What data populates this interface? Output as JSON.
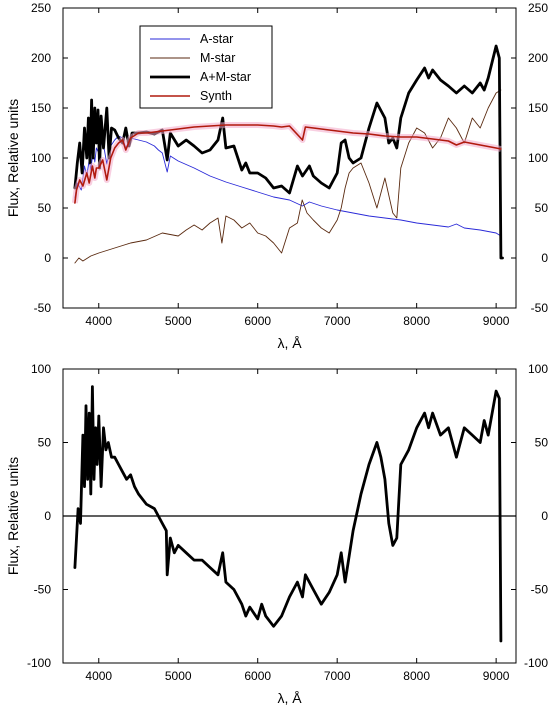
{
  "chart_data": [
    {
      "type": "line",
      "xlabel": "λ, Å",
      "ylabel": "Flux, Relative units",
      "xlim": [
        3550,
        9250
      ],
      "ylim": [
        -50,
        250
      ],
      "xticks": [
        4000,
        5000,
        6000,
        7000,
        8000,
        9000
      ],
      "yticks": [
        -50,
        0,
        50,
        100,
        150,
        200,
        250
      ],
      "right_axis_ticks": true,
      "grid": false,
      "legend": "top-left",
      "series": [
        {
          "name": "A-star",
          "color": "#2a2ad8",
          "width": 0.9,
          "x": [
            3700,
            3730,
            3780,
            3820,
            3850,
            3880,
            3900,
            3930,
            3950,
            3970,
            4000,
            4050,
            4101,
            4150,
            4200,
            4250,
            4300,
            4340,
            4400,
            4500,
            4600,
            4700,
            4750,
            4800,
            4861,
            4900,
            5000,
            5200,
            5400,
            5600,
            5800,
            6000,
            6200,
            6400,
            6563,
            6650,
            6800,
            7000,
            7200,
            7400,
            7600,
            7800,
            8000,
            8200,
            8400,
            8500,
            8600,
            8800,
            9000,
            9060
          ],
          "y": [
            60,
            75,
            68,
            92,
            82,
            98,
            88,
            108,
            96,
            110,
            105,
            118,
            94,
            112,
            118,
            122,
            120,
            110,
            120,
            118,
            116,
            112,
            108,
            105,
            86,
            102,
            97,
            90,
            82,
            76,
            71,
            66,
            61,
            58,
            52,
            56,
            52,
            48,
            45,
            42,
            40,
            38,
            35,
            33,
            31,
            34,
            30,
            28,
            25,
            22
          ]
        },
        {
          "name": "M-star",
          "color": "#5a2a10",
          "width": 0.9,
          "x": [
            3700,
            3750,
            3800,
            3900,
            4000,
            4200,
            4400,
            4600,
            4800,
            5000,
            5100,
            5200,
            5300,
            5400,
            5500,
            5550,
            5600,
            5700,
            5800,
            5900,
            6000,
            6100,
            6200,
            6300,
            6400,
            6500,
            6560,
            6620,
            6700,
            6800,
            6900,
            7000,
            7050,
            7100,
            7150,
            7200,
            7300,
            7400,
            7500,
            7600,
            7700,
            7750,
            7800,
            7900,
            8000,
            8100,
            8200,
            8300,
            8400,
            8500,
            8600,
            8700,
            8800,
            8900,
            9000,
            9060
          ],
          "y": [
            -5,
            0,
            -3,
            2,
            5,
            10,
            15,
            18,
            25,
            22,
            28,
            33,
            28,
            35,
            40,
            15,
            42,
            38,
            30,
            35,
            25,
            22,
            15,
            5,
            30,
            35,
            58,
            45,
            38,
            30,
            25,
            38,
            50,
            70,
            85,
            90,
            95,
            75,
            50,
            80,
            45,
            40,
            90,
            115,
            130,
            125,
            110,
            120,
            140,
            130,
            115,
            140,
            130,
            150,
            165,
            168
          ]
        },
        {
          "name": "A+M-star",
          "color": "#000000",
          "width": 2.8,
          "x": [
            3700,
            3730,
            3760,
            3790,
            3820,
            3850,
            3870,
            3890,
            3910,
            3930,
            3950,
            3970,
            3990,
            4010,
            4030,
            4060,
            4101,
            4130,
            4160,
            4200,
            4250,
            4300,
            4340,
            4380,
            4420,
            4500,
            4600,
            4700,
            4800,
            4861,
            4900,
            5000,
            5100,
            5200,
            5300,
            5400,
            5500,
            5560,
            5600,
            5700,
            5800,
            5850,
            5900,
            6000,
            6100,
            6200,
            6300,
            6400,
            6500,
            6563,
            6650,
            6700,
            6800,
            6900,
            7000,
            7050,
            7100,
            7150,
            7200,
            7300,
            7400,
            7500,
            7600,
            7650,
            7700,
            7750,
            7800,
            7900,
            8000,
            8100,
            8150,
            8200,
            8300,
            8400,
            8500,
            8600,
            8700,
            8800,
            8850,
            8900,
            9000,
            9040,
            9060,
            9080
          ],
          "y": [
            70,
            95,
            115,
            85,
            130,
            100,
            140,
            95,
            158,
            100,
            150,
            115,
            148,
            90,
            142,
            110,
            150,
            100,
            130,
            128,
            120,
            115,
            130,
            112,
            125,
            125,
            126,
            124,
            128,
            98,
            125,
            112,
            118,
            112,
            105,
            108,
            118,
            140,
            110,
            112,
            88,
            95,
            85,
            85,
            80,
            70,
            72,
            65,
            92,
            82,
            92,
            82,
            75,
            70,
            85,
            115,
            118,
            100,
            95,
            100,
            130,
            155,
            140,
            115,
            120,
            110,
            140,
            165,
            178,
            190,
            180,
            188,
            178,
            172,
            165,
            172,
            165,
            175,
            168,
            180,
            212,
            200,
            0,
            0
          ]
        },
        {
          "name": "Synth",
          "color": "#b11a0e",
          "width": 1.6,
          "halo": "#f3a7c8",
          "x": [
            3700,
            3720,
            3760,
            3800,
            3850,
            3880,
            3920,
            3950,
            3970,
            4000,
            4050,
            4101,
            4150,
            4200,
            4250,
            4300,
            4340,
            4400,
            4500,
            4600,
            4700,
            4800,
            4900,
            5000,
            5200,
            5400,
            5600,
            5800,
            6000,
            6200,
            6300,
            6400,
            6563,
            6600,
            6800,
            7000,
            7200,
            7400,
            7600,
            7800,
            8000,
            8200,
            8400,
            8500,
            8600,
            8800,
            9000,
            9060
          ],
          "y": [
            55,
            68,
            78,
            72,
            85,
            75,
            92,
            80,
            90,
            90,
            98,
            78,
            100,
            110,
            115,
            118,
            108,
            120,
            125,
            125,
            126,
            127,
            128,
            129,
            131,
            132,
            133,
            133,
            133,
            132,
            131,
            132,
            118,
            131,
            129,
            127,
            125,
            124,
            122,
            121,
            121,
            119,
            117,
            113,
            116,
            113,
            110,
            109
          ]
        }
      ]
    },
    {
      "type": "line",
      "xlabel": "λ, Å",
      "ylabel": "Flux, Relative units",
      "xlim": [
        3550,
        9250
      ],
      "ylim": [
        -100,
        100
      ],
      "xticks": [
        4000,
        5000,
        6000,
        7000,
        8000,
        9000
      ],
      "yticks": [
        -100,
        -50,
        0,
        50,
        100
      ],
      "right_axis_ticks": true,
      "zero_line": true,
      "grid": false,
      "series": [
        {
          "color": "#000000",
          "width": 2.8,
          "x": [
            3700,
            3740,
            3770,
            3800,
            3820,
            3840,
            3860,
            3880,
            3900,
            3920,
            3940,
            3960,
            3980,
            4000,
            4030,
            4060,
            4090,
            4120,
            4160,
            4200,
            4250,
            4300,
            4350,
            4400,
            4450,
            4500,
            4600,
            4700,
            4800,
            4850,
            4861,
            4900,
            4950,
            5000,
            5100,
            5200,
            5300,
            5400,
            5500,
            5560,
            5600,
            5700,
            5800,
            5850,
            5900,
            6000,
            6050,
            6100,
            6200,
            6300,
            6400,
            6500,
            6563,
            6600,
            6700,
            6800,
            6900,
            7000,
            7050,
            7100,
            7200,
            7300,
            7400,
            7500,
            7550,
            7600,
            7650,
            7700,
            7750,
            7800,
            7900,
            8000,
            8100,
            8150,
            8200,
            8300,
            8400,
            8500,
            8600,
            8700,
            8800,
            8850,
            8900,
            9000,
            9040,
            9060
          ],
          "y": [
            -35,
            5,
            -5,
            55,
            20,
            75,
            25,
            70,
            15,
            88,
            25,
            60,
            35,
            68,
            20,
            60,
            45,
            50,
            40,
            40,
            35,
            30,
            25,
            28,
            20,
            15,
            8,
            5,
            -5,
            -10,
            -40,
            -15,
            -25,
            -20,
            -25,
            -30,
            -30,
            -35,
            -40,
            -25,
            -45,
            -50,
            -60,
            -68,
            -62,
            -70,
            -60,
            -68,
            -75,
            -68,
            -55,
            -45,
            -55,
            -40,
            -50,
            -60,
            -52,
            -40,
            -25,
            -45,
            -10,
            15,
            35,
            50,
            40,
            25,
            -5,
            -20,
            -15,
            35,
            45,
            60,
            70,
            60,
            70,
            55,
            60,
            40,
            60,
            55,
            50,
            65,
            55,
            85,
            80,
            -85
          ]
        }
      ]
    }
  ]
}
